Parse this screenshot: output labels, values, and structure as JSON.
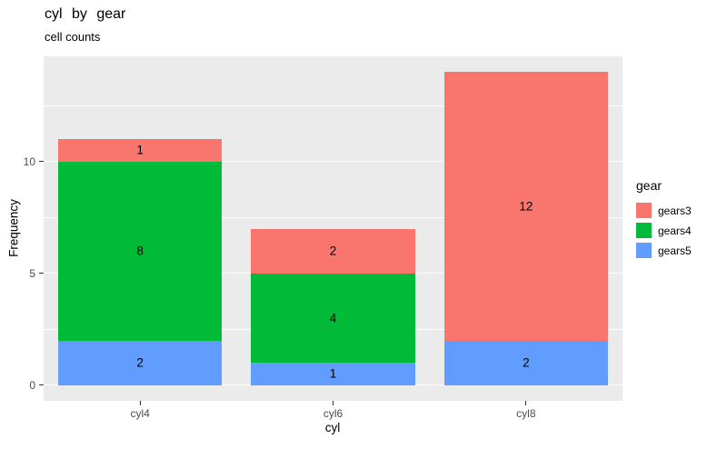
{
  "chart_data": {
    "type": "bar",
    "stacked": true,
    "title": "cyl by gear",
    "subtitle": "cell counts",
    "xlabel": "cyl",
    "ylabel": "Frequency",
    "categories": [
      "cyl4",
      "cyl6",
      "cyl8"
    ],
    "series": [
      {
        "name": "gears3",
        "color": "#F8766D",
        "values": [
          1,
          2,
          12
        ]
      },
      {
        "name": "gears4",
        "color": "#00BA38",
        "values": [
          8,
          4,
          0
        ]
      },
      {
        "name": "gears5",
        "color": "#619CFF",
        "values": [
          2,
          1,
          2
        ]
      }
    ],
    "stack_order_bottom_to_top": [
      "gears5",
      "gears4",
      "gears3"
    ],
    "totals": [
      11,
      7,
      14
    ],
    "y_ticks": [
      0,
      5,
      10
    ],
    "y_minor_ticks": [
      2.5,
      7.5,
      12.5
    ],
    "ylim": [
      -0.7,
      14.7
    ],
    "legend_title": "gear",
    "legend_position": "right",
    "grid": true,
    "panel_background": "#EBEBEB",
    "grid_color": "#FFFFFF",
    "axis_text_color": "#4D4D4D",
    "bar_label_color": "#000000"
  }
}
